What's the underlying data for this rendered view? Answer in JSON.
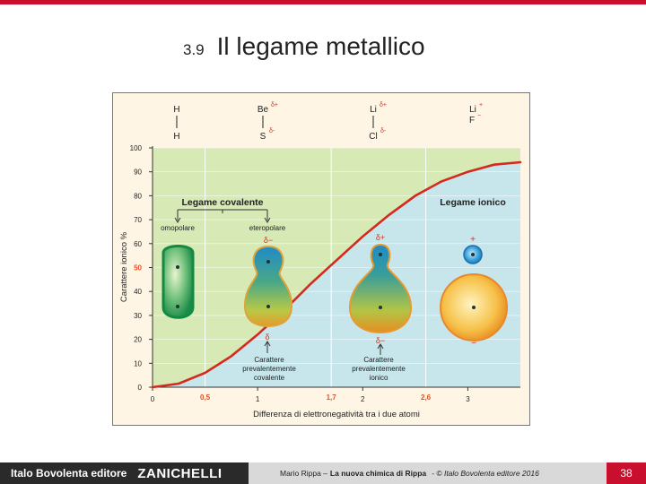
{
  "title": {
    "number": "3.9",
    "text": "Il legame metallico"
  },
  "chart_data": {
    "type": "line",
    "xlabel": "Differenza di elettronegatività tra i due atomi",
    "ylabel": "Carattere ionico %",
    "xlim": [
      0,
      3.5
    ],
    "ylim": [
      0,
      100
    ],
    "x_ticks": [
      "0",
      "1",
      "2",
      "3"
    ],
    "x_ticks_highlight": [
      "0,5",
      "1,7",
      "2,6"
    ],
    "y_ticks": [
      "0",
      "10",
      "20",
      "30",
      "40",
      "50",
      "60",
      "70",
      "80",
      "90",
      "100"
    ],
    "region_boundaries_x": [
      0.5,
      1.7,
      2.6
    ],
    "y_highlight": "50",
    "x": [
      0,
      0.25,
      0.5,
      0.75,
      1.0,
      1.25,
      1.5,
      1.7,
      2.0,
      2.25,
      2.5,
      2.75,
      3.0,
      3.25,
      3.5
    ],
    "y": [
      0,
      1.5,
      6,
      13,
      22,
      32,
      43,
      51,
      63,
      72,
      80,
      86,
      90,
      93,
      94
    ],
    "labels": {
      "covalent": "Legame covalente",
      "ionic": "Legame ionico",
      "nonpolar": "omopolare",
      "polar": "eteropolare",
      "mostly_covalent": [
        "Carattere",
        "prevalentemente",
        "covalente"
      ],
      "mostly_ionic": [
        "Carattere",
        "prevalentemente",
        "ionico"
      ]
    },
    "molecules": [
      {
        "top": "H",
        "bottom": "H"
      },
      {
        "top": "Be",
        "bottom": "S",
        "top_charge": "δ+",
        "bottom_charge": "δ-"
      },
      {
        "top": "Li",
        "bottom": "Cl",
        "top_charge": "δ+",
        "bottom_charge": "δ-"
      },
      {
        "top": "Li",
        "bottom": "F",
        "top_charge": "+",
        "bottom_charge": "−"
      }
    ],
    "blob_charges": {
      "polar_top": "δ−",
      "polar_bottom": "δ",
      "ionicish_top": "δ+",
      "ionicish_bottom": "δ−",
      "ionic_top": "+",
      "ionic_bottom": "−"
    },
    "colors": {
      "covalent_bg": "#d7e9b5",
      "ionic_bg": "#c6e6ec",
      "curve": "#d42a1e",
      "highlight": "#d9532b"
    }
  },
  "footer": {
    "brand": "Italo Bovolenta editore",
    "publisher": "ZANICHELLI",
    "author": "Mario Rippa –",
    "book": "La nuova chimica di Rippa",
    "copyright": "- © Italo Bovolenta editore 2016",
    "page": "38"
  }
}
